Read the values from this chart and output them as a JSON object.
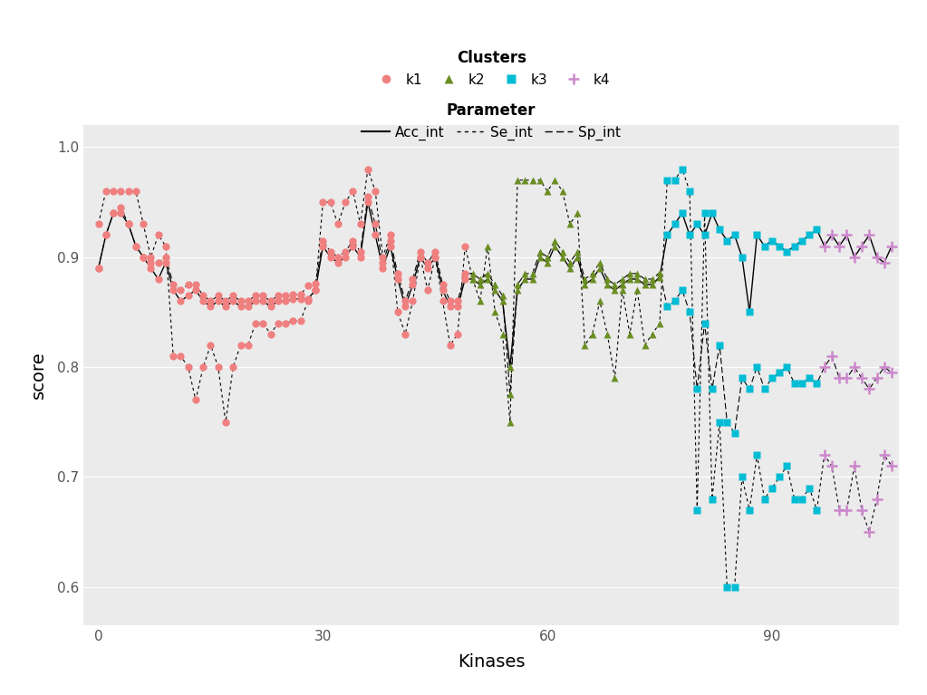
{
  "xlabel": "Kinases",
  "ylabel": "score",
  "xlim": [
    -2,
    107
  ],
  "ylim": [
    0.565,
    1.02
  ],
  "yticks": [
    0.6,
    0.7,
    0.8,
    0.9,
    1.0
  ],
  "xticks": [
    0,
    30,
    60,
    90
  ],
  "bg_color": "#EBEBEB",
  "cluster_colors": {
    "1": "#F08080",
    "2": "#6B8E23",
    "3": "#00BCD4",
    "4": "#CC88CC"
  },
  "cluster_assignments": [
    1,
    1,
    1,
    1,
    1,
    1,
    1,
    1,
    1,
    1,
    1,
    1,
    1,
    1,
    1,
    1,
    1,
    1,
    1,
    1,
    1,
    1,
    1,
    1,
    1,
    1,
    1,
    1,
    1,
    1,
    1,
    1,
    1,
    1,
    1,
    1,
    1,
    1,
    1,
    1,
    1,
    1,
    1,
    1,
    1,
    1,
    1,
    1,
    1,
    1,
    2,
    2,
    2,
    2,
    2,
    2,
    2,
    2,
    2,
    2,
    2,
    2,
    2,
    2,
    2,
    2,
    2,
    2,
    2,
    2,
    2,
    2,
    2,
    2,
    2,
    2,
    3,
    3,
    3,
    3,
    3,
    3,
    3,
    3,
    3,
    3,
    3,
    3,
    3,
    3,
    3,
    3,
    3,
    3,
    3,
    3,
    3,
    4,
    4,
    4,
    4,
    4,
    4,
    4,
    4,
    4,
    4
  ],
  "acc_int": [
    0.89,
    0.92,
    0.94,
    0.94,
    0.93,
    0.91,
    0.9,
    0.89,
    0.88,
    0.895,
    0.87,
    0.86,
    0.865,
    0.87,
    0.86,
    0.855,
    0.86,
    0.855,
    0.86,
    0.855,
    0.855,
    0.86,
    0.86,
    0.855,
    0.86,
    0.86,
    0.862,
    0.862,
    0.862,
    0.87,
    0.91,
    0.9,
    0.895,
    0.9,
    0.91,
    0.9,
    0.95,
    0.92,
    0.89,
    0.91,
    0.88,
    0.855,
    0.875,
    0.9,
    0.89,
    0.9,
    0.87,
    0.855,
    0.855,
    0.88,
    0.88,
    0.875,
    0.88,
    0.87,
    0.86,
    0.8,
    0.87,
    0.88,
    0.88,
    0.9,
    0.895,
    0.91,
    0.9,
    0.89,
    0.9,
    0.875,
    0.88,
    0.89,
    0.875,
    0.87,
    0.875,
    0.88,
    0.88,
    0.875,
    0.875,
    0.882,
    0.92,
    0.93,
    0.94,
    0.92,
    0.93,
    0.92,
    0.94,
    0.925,
    0.915,
    0.92,
    0.9,
    0.85,
    0.92,
    0.91,
    0.915,
    0.91,
    0.905,
    0.91,
    0.915,
    0.92,
    0.925,
    0.91,
    0.92,
    0.91,
    0.92,
    0.9,
    0.91,
    0.92,
    0.9,
    0.895,
    0.91
  ],
  "se_int": [
    0.93,
    0.96,
    0.96,
    0.96,
    0.96,
    0.96,
    0.93,
    0.9,
    0.92,
    0.91,
    0.81,
    0.81,
    0.8,
    0.77,
    0.8,
    0.82,
    0.8,
    0.75,
    0.8,
    0.82,
    0.82,
    0.84,
    0.84,
    0.83,
    0.84,
    0.84,
    0.842,
    0.842,
    0.86,
    0.87,
    0.95,
    0.95,
    0.93,
    0.95,
    0.96,
    0.93,
    0.98,
    0.96,
    0.9,
    0.92,
    0.85,
    0.83,
    0.86,
    0.9,
    0.87,
    0.9,
    0.86,
    0.82,
    0.83,
    0.91,
    0.88,
    0.86,
    0.91,
    0.85,
    0.83,
    0.75,
    0.97,
    0.97,
    0.97,
    0.97,
    0.96,
    0.97,
    0.96,
    0.93,
    0.94,
    0.82,
    0.83,
    0.86,
    0.83,
    0.79,
    0.87,
    0.83,
    0.87,
    0.82,
    0.83,
    0.84,
    0.97,
    0.97,
    0.98,
    0.96,
    0.67,
    0.94,
    0.68,
    0.75,
    0.6,
    0.6,
    0.7,
    0.67,
    0.72,
    0.68,
    0.69,
    0.7,
    0.71,
    0.68,
    0.68,
    0.69,
    0.67,
    0.72,
    0.71,
    0.67,
    0.67,
    0.71,
    0.67,
    0.65,
    0.68,
    0.72,
    0.71
  ],
  "sp_int": [
    0.89,
    0.92,
    0.94,
    0.945,
    0.93,
    0.91,
    0.9,
    0.895,
    0.895,
    0.9,
    0.875,
    0.87,
    0.875,
    0.875,
    0.865,
    0.86,
    0.865,
    0.86,
    0.865,
    0.86,
    0.86,
    0.865,
    0.865,
    0.86,
    0.865,
    0.865,
    0.866,
    0.866,
    0.874,
    0.876,
    0.915,
    0.905,
    0.9,
    0.905,
    0.915,
    0.905,
    0.955,
    0.93,
    0.895,
    0.915,
    0.885,
    0.86,
    0.88,
    0.905,
    0.895,
    0.905,
    0.875,
    0.86,
    0.86,
    0.885,
    0.885,
    0.88,
    0.885,
    0.875,
    0.865,
    0.775,
    0.875,
    0.885,
    0.885,
    0.905,
    0.9,
    0.915,
    0.905,
    0.895,
    0.905,
    0.88,
    0.885,
    0.895,
    0.88,
    0.875,
    0.88,
    0.885,
    0.885,
    0.88,
    0.88,
    0.886,
    0.855,
    0.86,
    0.87,
    0.85,
    0.78,
    0.84,
    0.78,
    0.82,
    0.75,
    0.74,
    0.79,
    0.78,
    0.8,
    0.78,
    0.79,
    0.795,
    0.8,
    0.785,
    0.785,
    0.79,
    0.785,
    0.8,
    0.81,
    0.79,
    0.79,
    0.8,
    0.79,
    0.78,
    0.79,
    0.8,
    0.795
  ]
}
